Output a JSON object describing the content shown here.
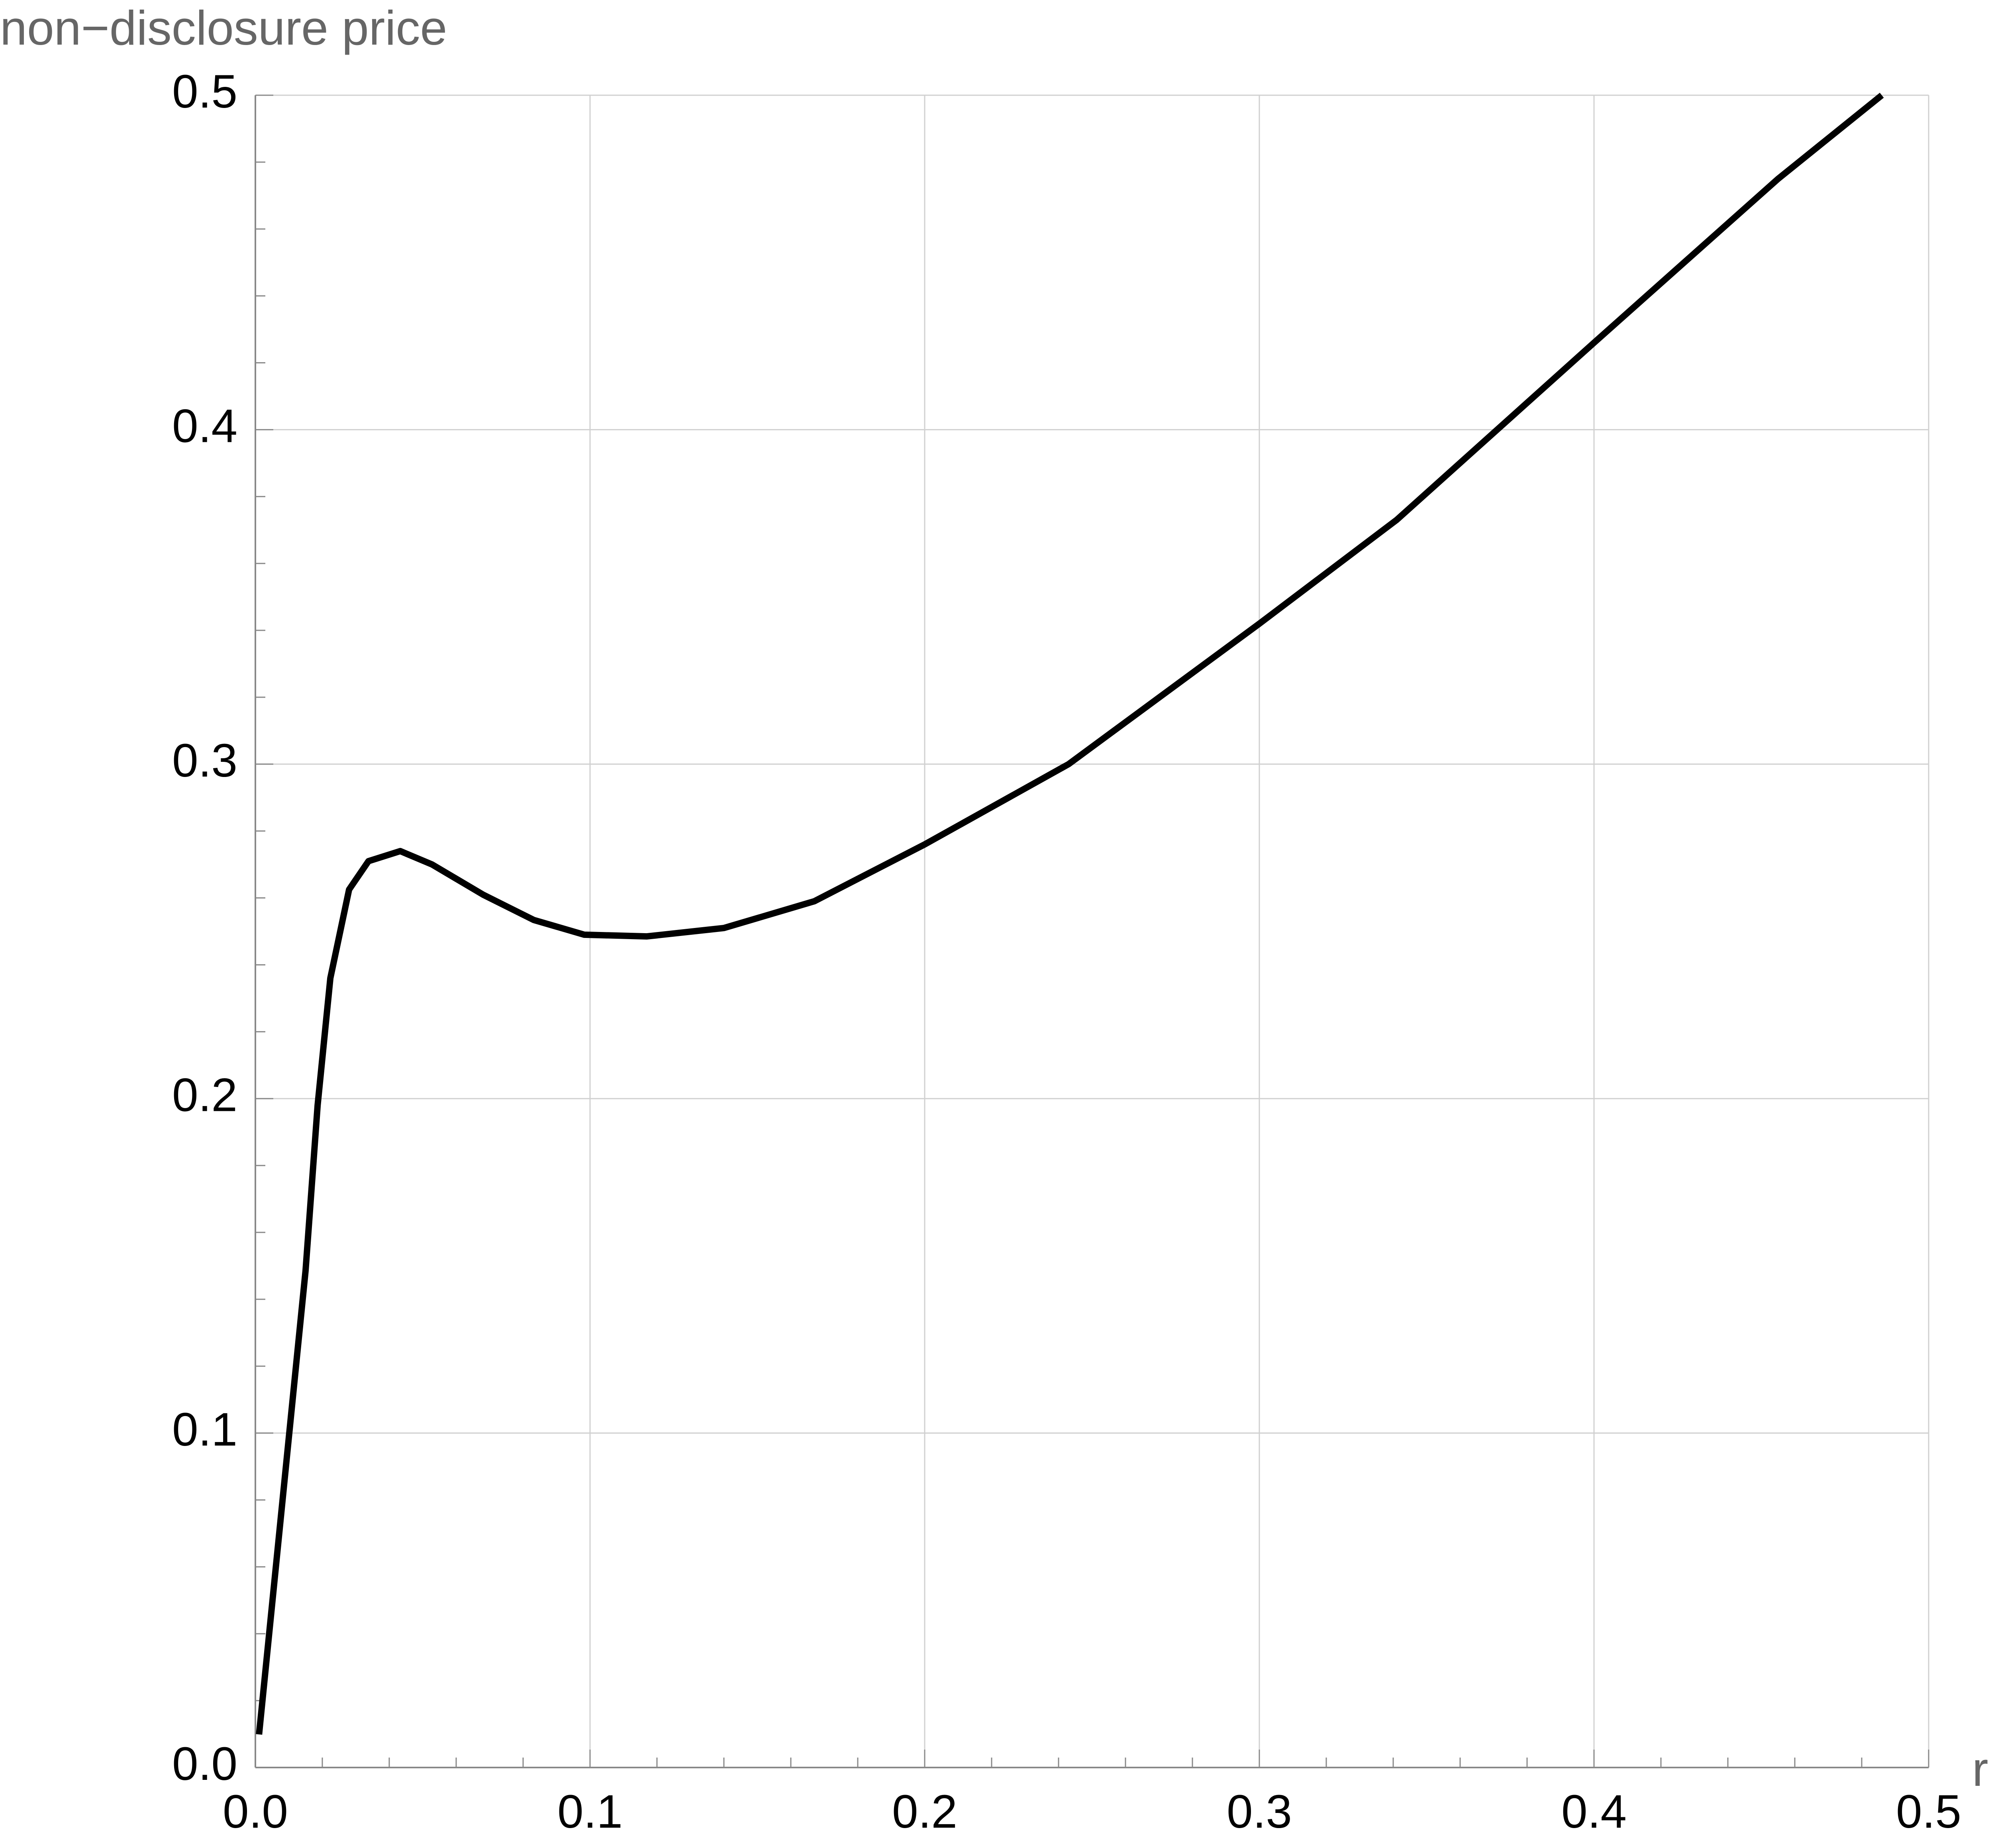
{
  "chart_data": {
    "type": "line",
    "y_label": "non−disclosure price",
    "x_label": "r",
    "xlim": [
      0,
      0.5
    ],
    "ylim": [
      0,
      0.5
    ],
    "xticks": [
      {
        "value": 0,
        "label": "0.0"
      },
      0.1,
      0.2,
      0.3,
      0.4,
      0.5
    ],
    "yticks": [
      {
        "value": 0,
        "label": "0.0"
      },
      0.1,
      0.2,
      0.3,
      0.4,
      0.5
    ],
    "x_minor_ticks": [
      0.02,
      0.04,
      0.06,
      0.08,
      0.12,
      0.14,
      0.16,
      0.18,
      0.22,
      0.24,
      0.26,
      0.28,
      0.32,
      0.34,
      0.36,
      0.38,
      0.42,
      0.44,
      0.46,
      0.48
    ],
    "y_minor_ticks": [
      0.02,
      0.04,
      0.06,
      0.08,
      0.12,
      0.14,
      0.16,
      0.18,
      0.22,
      0.24,
      0.26,
      0.28,
      0.32,
      0.34,
      0.36,
      0.38,
      0.42,
      0.44,
      0.46,
      0.48
    ],
    "grid": true,
    "series": [
      {
        "color": "#000000",
        "x": [
          0.0011,
          0.015,
          0.0186,
          0.0224,
          0.028,
          0.0338,
          0.0433,
          0.0528,
          0.068,
          0.0832,
          0.0983,
          0.117,
          0.14,
          0.167,
          0.2,
          0.243,
          0.3,
          0.341,
          0.4,
          0.455,
          0.486
        ],
        "values": [
          0.0099,
          0.1486,
          0.198,
          0.236,
          0.2625,
          0.271,
          0.274,
          0.27,
          0.261,
          0.2534,
          0.249,
          0.2485,
          0.251,
          0.259,
          0.276,
          0.3,
          0.342,
          0.373,
          0.426,
          0.475,
          0.5
        ]
      }
    ]
  }
}
